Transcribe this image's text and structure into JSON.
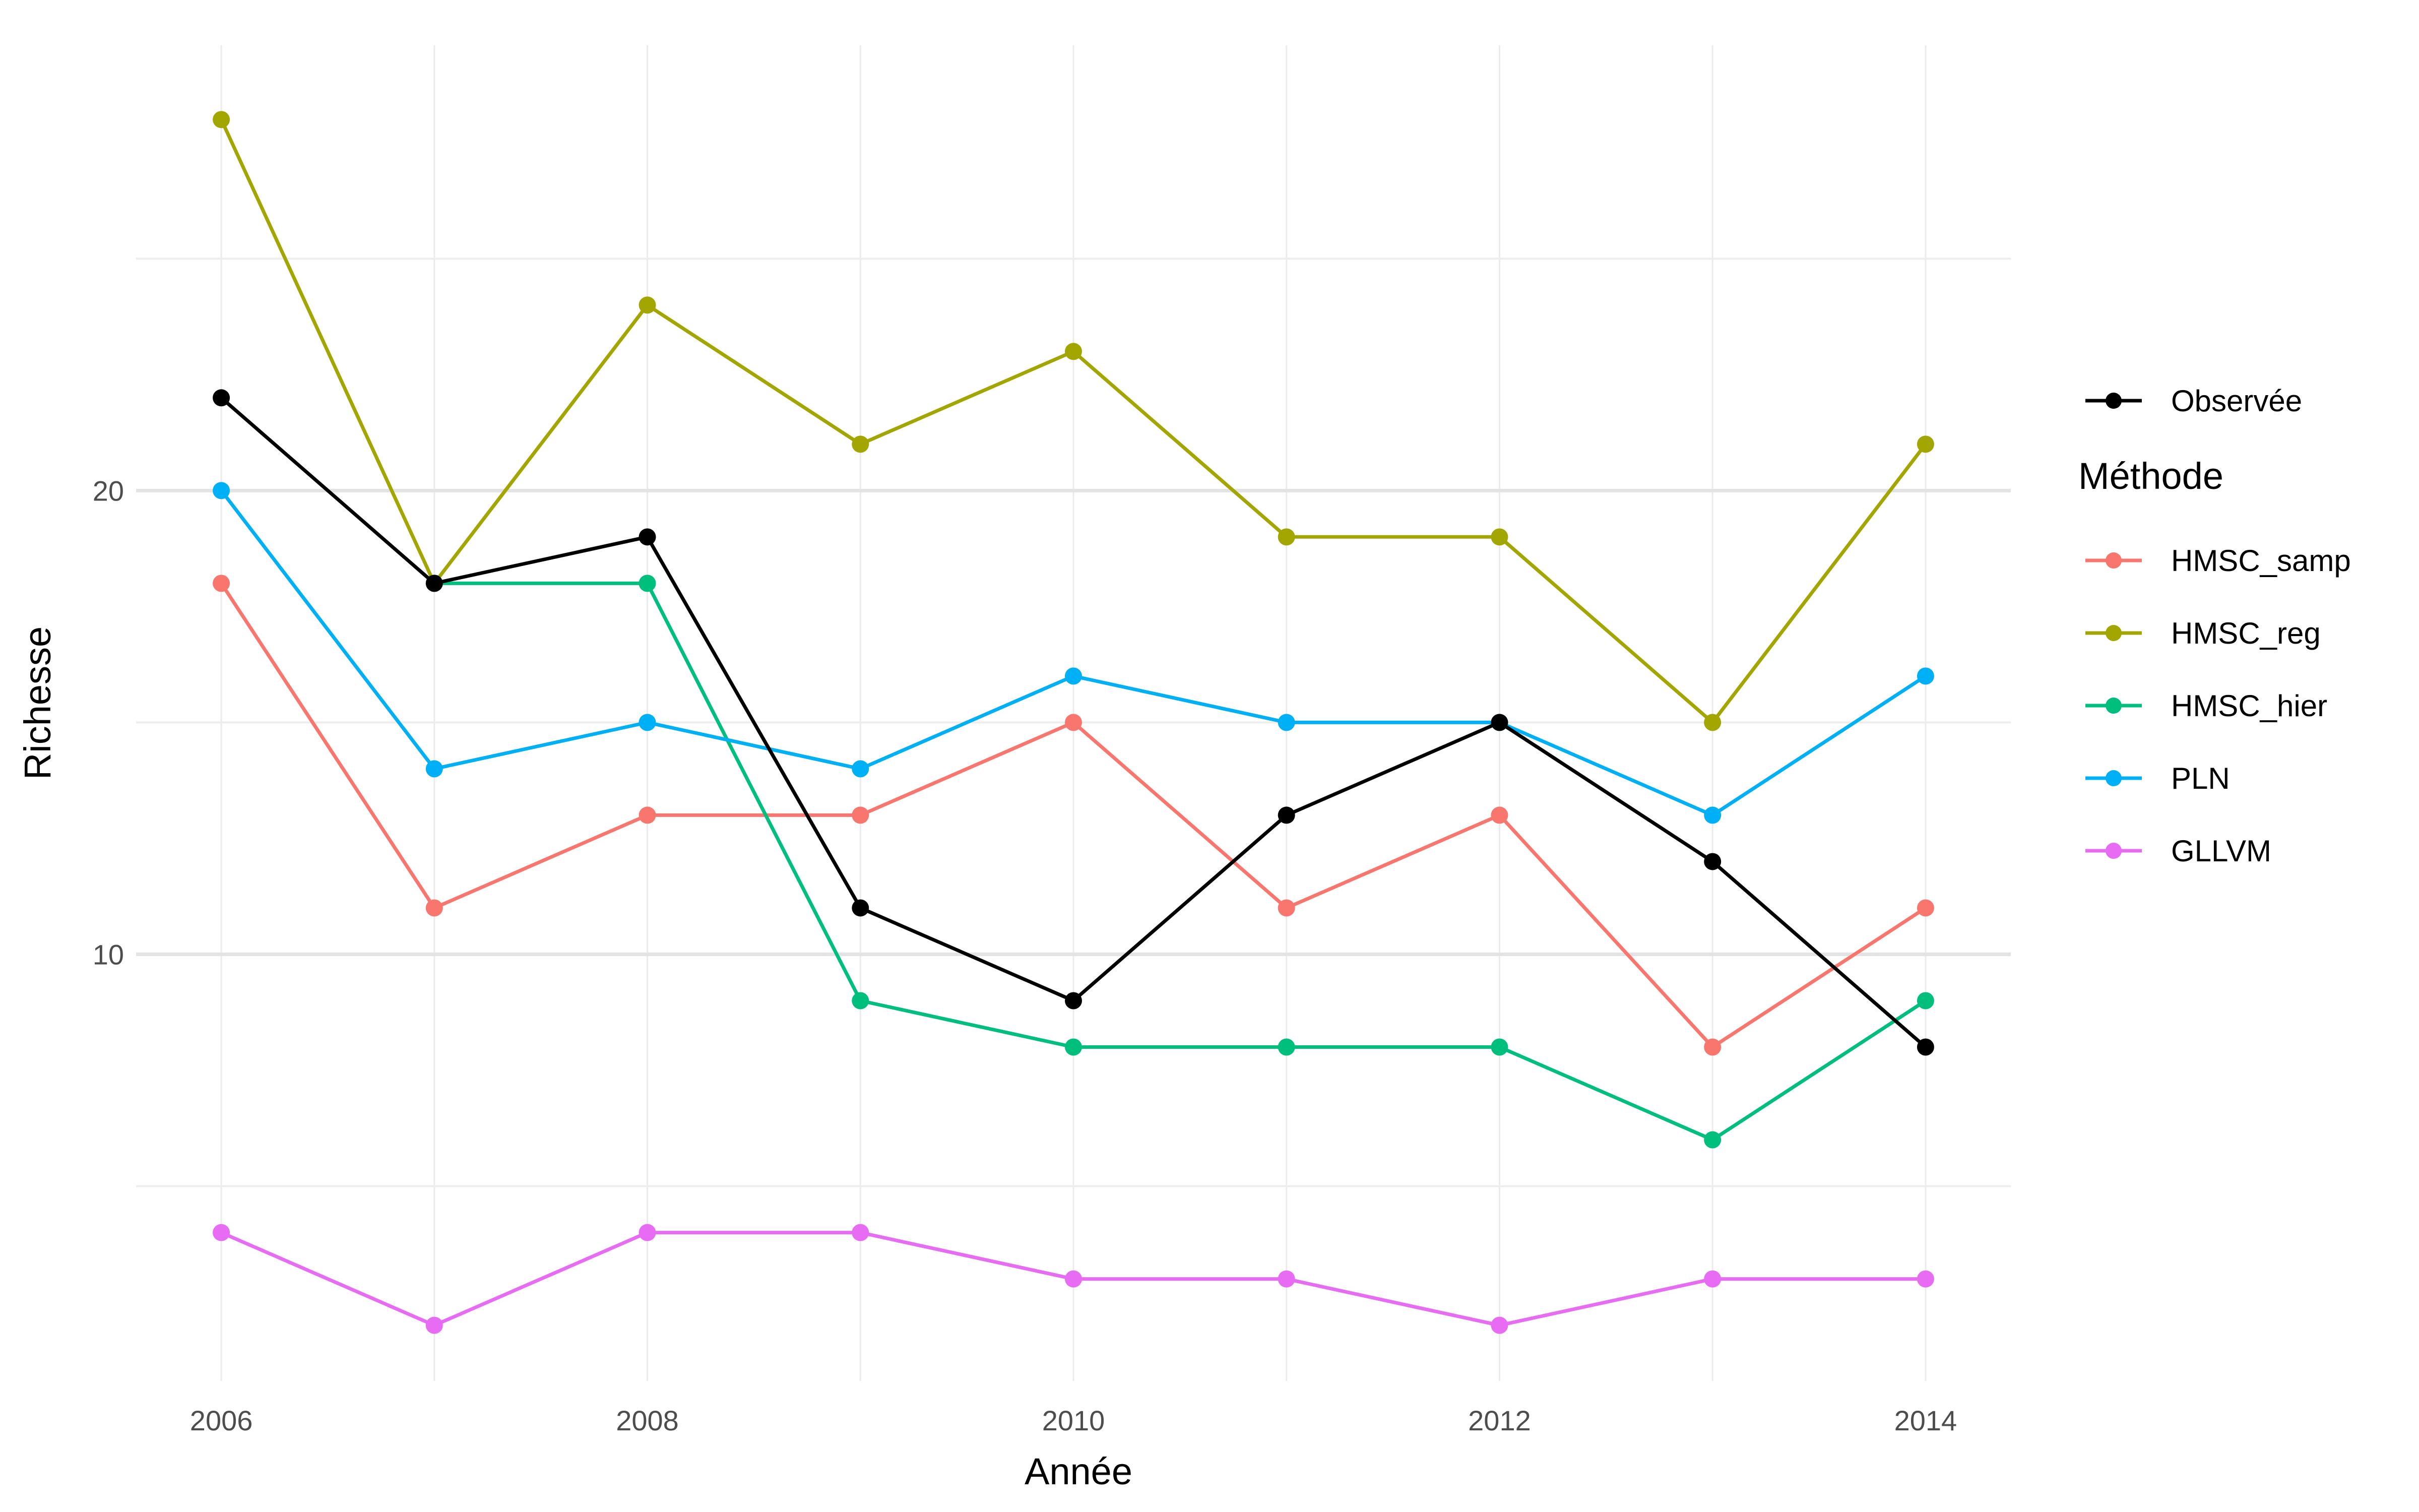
{
  "chart_data": {
    "type": "line",
    "xlabel": "Année",
    "ylabel": "Richesse",
    "legend_title": "Méthode",
    "legend_position": "right",
    "grid": true,
    "x": [
      2006,
      2007,
      2008,
      2009,
      2010,
      2011,
      2012,
      2013,
      2014
    ],
    "x_ticks": [
      "2006",
      "2008",
      "2010",
      "2012",
      "2014"
    ],
    "y_ticks": [
      "10",
      "20"
    ],
    "xlim": [
      2005.6,
      2014.4
    ],
    "ylim": [
      0.8,
      29.6
    ],
    "observed": {
      "name": "Observée",
      "color": "#000000",
      "values": [
        22,
        18,
        19,
        11,
        9,
        13,
        15,
        12,
        8
      ]
    },
    "series": [
      {
        "name": "HMSC_samp",
        "color": "#F8766D",
        "values": [
          18,
          11,
          13,
          13,
          15,
          11,
          13,
          8,
          11
        ]
      },
      {
        "name": "HMSC_reg",
        "color": "#A3A500",
        "values": [
          28,
          18,
          24,
          21,
          23,
          19,
          19,
          15,
          21
        ]
      },
      {
        "name": "HMSC_hier",
        "color": "#00BF7D",
        "values": [
          null,
          18,
          18,
          9,
          8,
          8,
          8,
          6,
          9
        ]
      },
      {
        "name": "PLN",
        "color": "#00B0F6",
        "values": [
          20,
          14,
          15,
          14,
          16,
          15,
          15,
          13,
          16
        ]
      },
      {
        "name": "GLLVM",
        "color": "#E76BF3",
        "values": [
          4,
          2,
          4,
          4,
          3,
          3,
          2,
          3,
          3
        ]
      }
    ]
  }
}
